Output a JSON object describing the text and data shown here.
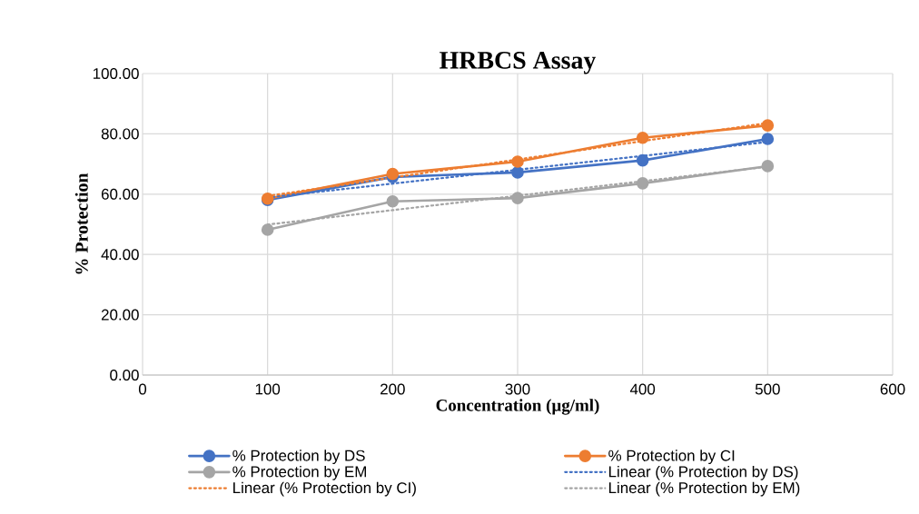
{
  "chart_data": {
    "type": "line",
    "title": "HRBCS Assay",
    "xlabel": "Concentration (µg/ml)",
    "ylabel": "% Protection",
    "x": [
      100,
      200,
      300,
      400,
      500
    ],
    "series": [
      {
        "name": "% Protection by DS",
        "color": "#4472c4",
        "values": [
          58.1,
          65.7,
          67.2,
          71.2,
          78.3
        ],
        "marker": "circle",
        "line_style": "solid"
      },
      {
        "name": "% Protection by CI",
        "color": "#ed7d31",
        "values": [
          58.5,
          66.7,
          70.8,
          78.7,
          82.8
        ],
        "marker": "circle",
        "line_style": "solid"
      },
      {
        "name": "% Protection by EM",
        "color": "#a5a5a5",
        "values": [
          48.2,
          57.6,
          58.7,
          63.6,
          69.3
        ],
        "marker": "circle",
        "line_style": "solid"
      },
      {
        "name": "Linear (% Protection by DS)",
        "color": "#4472c4",
        "values": [
          58.9,
          63.5,
          68.1,
          72.7,
          77.3
        ],
        "marker": "none",
        "line_style": "dotted"
      },
      {
        "name": "Linear (% Protection by CI)",
        "color": "#ed7d31",
        "values": [
          59.4,
          65.5,
          71.5,
          77.6,
          83.6
        ],
        "marker": "none",
        "line_style": "dotted"
      },
      {
        "name": "Linear (% Protection by EM)",
        "color": "#a5a5a5",
        "values": [
          49.9,
          54.7,
          59.5,
          64.3,
          69.1
        ],
        "marker": "none",
        "line_style": "dotted"
      }
    ],
    "xlim": [
      0,
      600
    ],
    "xticks": [
      0,
      100,
      200,
      300,
      400,
      500,
      600
    ],
    "ylim": [
      0,
      100
    ],
    "yticks": [
      {
        "value": 0,
        "label": "0.00"
      },
      {
        "value": 20,
        "label": "20.00"
      },
      {
        "value": 40,
        "label": "40.00"
      },
      {
        "value": 60,
        "label": "60.00"
      },
      {
        "value": 80,
        "label": "80.00"
      },
      {
        "value": 100,
        "label": "100.00"
      }
    ],
    "grid": true,
    "legend": "bottom"
  }
}
